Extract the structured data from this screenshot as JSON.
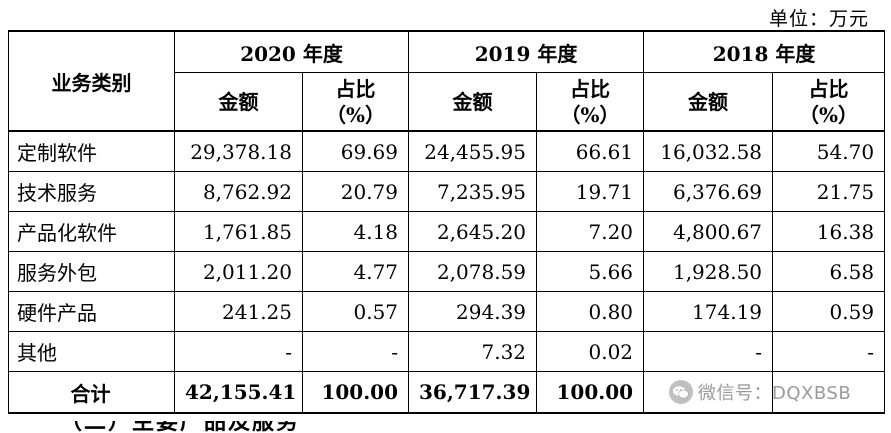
{
  "unit": "单位：万元",
  "headers": {
    "category": "业务类别",
    "years": [
      "2020 年度",
      "2019 年度",
      "2018 年度"
    ],
    "amount": "金额",
    "ratio_line1": "占比",
    "ratio_line2": "（%）"
  },
  "rows": [
    {
      "label": "定制软件",
      "cells": [
        "29,378.18",
        "69.69",
        "24,455.95",
        "66.61",
        "16,032.58",
        "54.70"
      ]
    },
    {
      "label": "技术服务",
      "cells": [
        "8,762.92",
        "20.79",
        "7,235.95",
        "19.71",
        "6,376.69",
        "21.75"
      ]
    },
    {
      "label": "产品化软件",
      "cells": [
        "1,761.85",
        "4.18",
        "2,645.20",
        "7.20",
        "4,800.67",
        "16.38"
      ]
    },
    {
      "label": "服务外包",
      "cells": [
        "2,011.20",
        "4.77",
        "2,078.59",
        "5.66",
        "1,928.50",
        "6.58"
      ]
    },
    {
      "label": "硬件产品",
      "cells": [
        "241.25",
        "0.57",
        "294.39",
        "0.80",
        "174.19",
        "0.59"
      ]
    },
    {
      "label": "其他",
      "cells": [
        "-",
        "-",
        "7.32",
        "0.02",
        "-",
        "-"
      ]
    }
  ],
  "total": {
    "label": "合计",
    "cells": [
      "42,155.41",
      "100.00",
      "36,717.39",
      "100.00",
      "",
      ""
    ]
  },
  "watermark": {
    "text": "微信号：DQXBSB",
    "icon": "wechat-icon"
  },
  "cutoff_text": "（二）主要产品及服务"
}
